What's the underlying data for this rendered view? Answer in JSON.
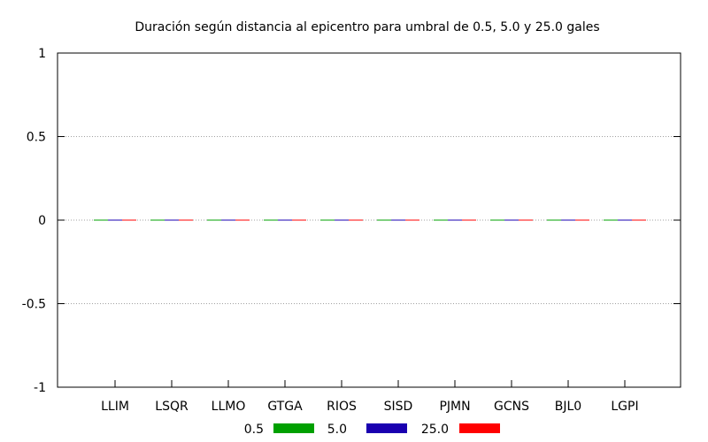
{
  "chart_data": {
    "type": "bar",
    "title": "Duración según distancia al epicentro para umbral de 0.5, 5.0 y 25.0 gales",
    "xlabel": "",
    "ylabel": "",
    "categories": [
      "LLIM",
      "LSQR",
      "LLMO",
      "GTGA",
      "RIOS",
      "SISD",
      "PJMN",
      "GCNS",
      "BJL0",
      "LGPI"
    ],
    "series": [
      {
        "name": "0.5",
        "color": "#00a000",
        "values": [
          0,
          0,
          0,
          0,
          0,
          0,
          0,
          0,
          0,
          0
        ]
      },
      {
        "name": "5.0",
        "color": "#1a00b0",
        "values": [
          0,
          0,
          0,
          0,
          0,
          0,
          0,
          0,
          0,
          0
        ]
      },
      {
        "name": "25.0",
        "color": "#ff0000",
        "values": [
          0,
          0,
          0,
          0,
          0,
          0,
          0,
          0,
          0,
          0
        ]
      }
    ],
    "ylim": [
      -1,
      1
    ],
    "yticks": [
      "1",
      "0.5",
      "0",
      "-0.5",
      "-1"
    ],
    "ytick_values": [
      1,
      0.5,
      0,
      -0.5,
      -1
    ],
    "grid": "horizontal dotted",
    "legend_position": "bottom-center"
  }
}
